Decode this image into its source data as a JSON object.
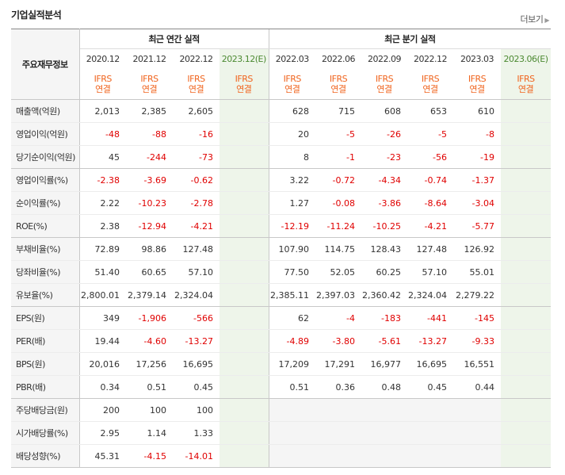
{
  "header": {
    "title": "기업실적분석",
    "more_label": "더보기",
    "more_icon": "caret-right-icon"
  },
  "table": {
    "row_header_label": "주요재무정보",
    "group_annual": "최근 연간 실적",
    "group_quarter": "최근 분기 실적",
    "annual_periods": [
      "2020.12",
      "2021.12",
      "2022.12",
      "2023.12(E)"
    ],
    "quarter_periods": [
      "2022.03",
      "2022.06",
      "2022.09",
      "2022.12",
      "2023.03",
      "2023.06(E)"
    ],
    "basis_line1": "IFRS",
    "basis_line2": "연결",
    "rows": [
      {
        "label": "매출액(억원)",
        "annual": [
          "2,013",
          "2,385",
          "2,605",
          ""
        ],
        "quarter": [
          "628",
          "715",
          "608",
          "653",
          "610",
          ""
        ]
      },
      {
        "label": "영업이익(억원)",
        "annual": [
          "-48",
          "-88",
          "-16",
          ""
        ],
        "quarter": [
          "20",
          "-5",
          "-26",
          "-5",
          "-8",
          ""
        ]
      },
      {
        "label": "당기순이익(억원)",
        "annual": [
          "45",
          "-244",
          "-73",
          ""
        ],
        "quarter": [
          "8",
          "-1",
          "-23",
          "-56",
          "-19",
          ""
        ]
      },
      {
        "label": "영업이익률(%)",
        "annual": [
          "-2.38",
          "-3.69",
          "-0.62",
          ""
        ],
        "quarter": [
          "3.22",
          "-0.72",
          "-4.34",
          "-0.74",
          "-1.37",
          ""
        ]
      },
      {
        "label": "순이익률(%)",
        "annual": [
          "2.22",
          "-10.23",
          "-2.78",
          ""
        ],
        "quarter": [
          "1.27",
          "-0.08",
          "-3.86",
          "-8.64",
          "-3.04",
          ""
        ]
      },
      {
        "label": "ROE(%)",
        "annual": [
          "2.38",
          "-12.94",
          "-4.21",
          ""
        ],
        "quarter": [
          "-12.19",
          "-11.24",
          "-10.25",
          "-4.21",
          "-5.77",
          ""
        ]
      },
      {
        "label": "부채비율(%)",
        "annual": [
          "72.89",
          "98.86",
          "127.48",
          ""
        ],
        "quarter": [
          "107.90",
          "114.75",
          "128.43",
          "127.48",
          "126.92",
          ""
        ]
      },
      {
        "label": "당좌비율(%)",
        "annual": [
          "51.40",
          "60.65",
          "57.10",
          ""
        ],
        "quarter": [
          "77.50",
          "52.05",
          "60.25",
          "57.10",
          "55.01",
          ""
        ]
      },
      {
        "label": "유보율(%)",
        "annual": [
          "2,800.01",
          "2,379.14",
          "2,324.04",
          ""
        ],
        "quarter": [
          "2,385.11",
          "2,397.03",
          "2,360.42",
          "2,324.04",
          "2,279.22",
          ""
        ]
      },
      {
        "label": "EPS(원)",
        "annual": [
          "349",
          "-1,906",
          "-566",
          ""
        ],
        "quarter": [
          "62",
          "-4",
          "-183",
          "-441",
          "-145",
          ""
        ]
      },
      {
        "label": "PER(배)",
        "annual": [
          "19.44",
          "-4.60",
          "-13.27",
          ""
        ],
        "quarter": [
          "-4.89",
          "-3.80",
          "-5.61",
          "-13.27",
          "-9.33",
          ""
        ]
      },
      {
        "label": "BPS(원)",
        "annual": [
          "20,016",
          "17,256",
          "16,695",
          ""
        ],
        "quarter": [
          "17,209",
          "17,291",
          "16,977",
          "16,695",
          "16,551",
          ""
        ]
      },
      {
        "label": "PBR(배)",
        "annual": [
          "0.34",
          "0.51",
          "0.45",
          ""
        ],
        "quarter": [
          "0.51",
          "0.36",
          "0.48",
          "0.45",
          "0.44",
          ""
        ]
      },
      {
        "label": "주당배당금(원)",
        "annual": [
          "200",
          "100",
          "100",
          ""
        ],
        "quarter": [
          "",
          "",
          "",
          "",
          "",
          ""
        ]
      },
      {
        "label": "시가배당률(%)",
        "annual": [
          "2.95",
          "1.14",
          "1.33",
          ""
        ],
        "quarter": [
          "",
          "",
          "",
          "",
          "",
          ""
        ]
      },
      {
        "label": "배당성향(%)",
        "annual": [
          "45.31",
          "-4.15",
          "-14.01",
          ""
        ],
        "quarter": [
          "",
          "",
          "",
          "",
          "",
          ""
        ]
      }
    ]
  },
  "colors": {
    "negative": "#e00000",
    "ifrs": "#f0641e",
    "estimate_bg": "#eef5ea",
    "estimate_text": "#4c8a32"
  }
}
